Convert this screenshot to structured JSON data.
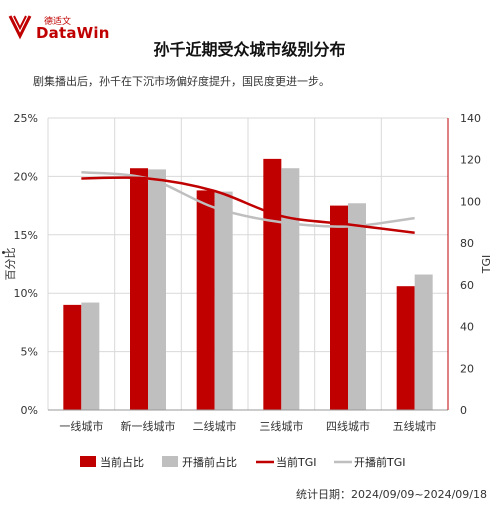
{
  "logo": {
    "cn": "德适文",
    "en": "DataWin"
  },
  "title": "孙千近期受众城市级别分布",
  "subtitle": "剧集播出后，孙千在下沉市场偏好度提升，国民度更进一步。",
  "footer": "统计日期：2024/09/09~2024/09/18",
  "colors": {
    "current": "#c00000",
    "before": "#bfbfbf",
    "grid": "#d9d9d9"
  },
  "chart_data": {
    "type": "bar",
    "categories": [
      "一线城市",
      "新一线城市",
      "二线城市",
      "三线城市",
      "四线城市",
      "五线城市"
    ],
    "ylabel": "百分比",
    "y2label": "TGI",
    "ylim": [
      0,
      25
    ],
    "y2lim": [
      0,
      140
    ],
    "yticks": [
      "0%",
      "5%",
      "10%",
      "15%",
      "20%",
      "25%"
    ],
    "y2ticks": [
      "0",
      "20",
      "40",
      "60",
      "80",
      "100",
      "120",
      "140"
    ],
    "grid": true,
    "legend_position": "bottom",
    "series": [
      {
        "name": "当前占比",
        "kind": "bar",
        "axis": "left",
        "values": [
          9.0,
          20.7,
          18.8,
          21.5,
          17.5,
          10.6
        ]
      },
      {
        "name": "开播前占比",
        "kind": "bar",
        "axis": "left",
        "values": [
          9.2,
          20.6,
          18.7,
          20.7,
          17.7,
          11.6
        ]
      },
      {
        "name": "当前TGI",
        "kind": "line",
        "axis": "right",
        "values": [
          111,
          111,
          105,
          93,
          89,
          85
        ]
      },
      {
        "name": "开播前TGI",
        "kind": "line",
        "axis": "right",
        "values": [
          114,
          111,
          97,
          90,
          88,
          92
        ]
      }
    ]
  }
}
